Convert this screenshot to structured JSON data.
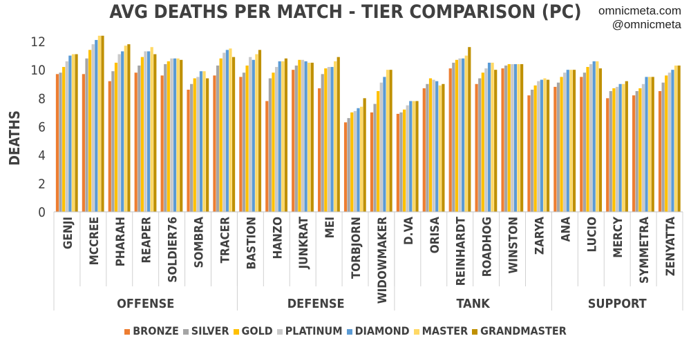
{
  "header": {
    "credit_line1": "omnicmeta.com",
    "credit_line2": "@omnicmeta"
  },
  "chart_data": {
    "type": "bar",
    "title": "AVG DEATHS PER MATCH - TIER COMPARISON (PC)",
    "xlabel": "",
    "ylabel": "DEATHS",
    "ylim": [
      0,
      12
    ],
    "yticks": [
      0,
      2,
      4,
      6,
      8,
      10,
      12
    ],
    "grid": false,
    "legend_position": "bottom",
    "categories": [
      "GENJI",
      "MCCREE",
      "PHARAH",
      "REAPER",
      "SOLDIER76",
      "SOMBRA",
      "TRACER",
      "BASTION",
      "HANZO",
      "JUNKRAT",
      "MEI",
      "TORBJORN",
      "WIDOWMAKER",
      "D.VA",
      "ORISA",
      "REINHARDT",
      "ROADHOG",
      "WINSTON",
      "ZARYA",
      "ANA",
      "LUCIO",
      "MERCY",
      "SYMMETRA",
      "ZENYATTA"
    ],
    "groups": [
      {
        "label": "OFFENSE",
        "count": 7
      },
      {
        "label": "DEFENSE",
        "count": 6
      },
      {
        "label": "TANK",
        "count": 6
      },
      {
        "label": "SUPPORT",
        "count": 5
      }
    ],
    "series": [
      {
        "name": "BRONZE",
        "color": "#ed7d31",
        "values": [
          9.7,
          9.7,
          9.2,
          9.8,
          9.6,
          8.6,
          9.6,
          9.5,
          7.8,
          10.0,
          8.7,
          6.3,
          7.0,
          6.9,
          8.7,
          10.1,
          9.0,
          10.1,
          8.2,
          8.8,
          9.5,
          8.0,
          8.2,
          8.5
        ]
      },
      {
        "name": "SILVER",
        "color": "#a5a5a5",
        "values": [
          9.8,
          10.8,
          9.9,
          10.3,
          10.4,
          9.0,
          10.3,
          9.8,
          9.4,
          10.3,
          9.7,
          6.6,
          7.6,
          7.0,
          9.0,
          10.5,
          9.4,
          10.3,
          8.6,
          9.1,
          9.8,
          8.5,
          8.5,
          9.1
        ]
      },
      {
        "name": "GOLD",
        "color": "#ffc000",
        "values": [
          10.2,
          11.4,
          10.5,
          10.9,
          10.6,
          9.4,
          10.8,
          10.3,
          9.8,
          10.7,
          10.1,
          7.0,
          8.5,
          7.2,
          9.4,
          10.7,
          9.8,
          10.4,
          8.9,
          9.5,
          10.2,
          8.7,
          8.7,
          9.6
        ]
      },
      {
        "name": "PLATINUM",
        "color": "#c9c9c9",
        "values": [
          10.6,
          11.8,
          11.1,
          11.3,
          10.8,
          9.5,
          11.2,
          10.9,
          10.2,
          10.7,
          10.2,
          7.1,
          9.1,
          7.5,
          9.3,
          10.8,
          10.1,
          10.4,
          9.2,
          9.8,
          10.4,
          8.8,
          9.0,
          9.8
        ]
      },
      {
        "name": "DIAMOND",
        "color": "#5b9bd5",
        "values": [
          11.0,
          12.1,
          11.3,
          11.3,
          10.8,
          9.9,
          11.4,
          10.7,
          10.6,
          10.6,
          10.2,
          7.3,
          9.5,
          7.8,
          9.2,
          10.8,
          10.5,
          10.4,
          9.3,
          10.0,
          10.6,
          9.0,
          9.5,
          10.0
        ]
      },
      {
        "name": "MASTER",
        "color": "#ffd966",
        "values": [
          11.1,
          12.4,
          11.7,
          11.6,
          10.8,
          9.9,
          11.5,
          11.1,
          10.6,
          10.5,
          10.6,
          7.4,
          10.0,
          7.8,
          8.9,
          11.0,
          10.5,
          10.4,
          9.4,
          10.0,
          10.6,
          9.0,
          9.5,
          10.3
        ]
      },
      {
        "name": "GRANDMASTER",
        "color": "#bf9000",
        "values": [
          11.1,
          12.4,
          11.8,
          11.1,
          10.7,
          9.4,
          10.9,
          11.4,
          10.8,
          10.5,
          10.9,
          8.0,
          10.0,
          7.8,
          9.0,
          11.6,
          10.0,
          10.4,
          9.3,
          10.0,
          10.1,
          9.2,
          9.5,
          10.3
        ]
      }
    ]
  }
}
